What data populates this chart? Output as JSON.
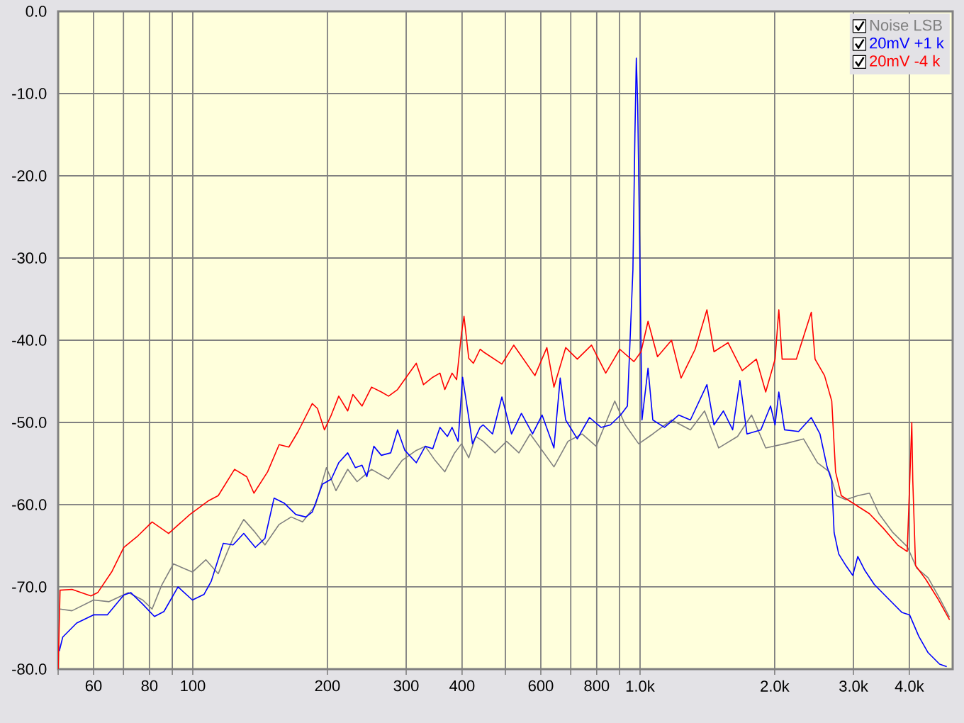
{
  "chart_data": {
    "type": "line",
    "log": "x",
    "grid": true,
    "legend": "top right",
    "xlim": [
      50,
      5000
    ],
    "ylim": [
      -80,
      0
    ],
    "xticks": [
      {
        "value": 50,
        "label": null
      },
      60,
      {
        "value": 70,
        "label": null
      },
      80,
      {
        "value": 90,
        "label": null
      },
      100,
      200,
      300,
      400,
      {
        "value": 500,
        "label": null
      },
      600,
      {
        "value": 700,
        "label": null
      },
      800,
      {
        "value": 900,
        "label": null
      },
      {
        "value": 1000,
        "label": "1.0k"
      },
      {
        "value": 2000,
        "label": "2.0k"
      },
      {
        "value": 3000,
        "label": "3.0k"
      },
      {
        "value": 4000,
        "label": "4.0k"
      }
    ],
    "yticks": [
      {
        "value": 0,
        "label": "0.0"
      },
      {
        "value": -10,
        "label": "-10.0"
      },
      {
        "value": -20,
        "label": "-20.0"
      },
      {
        "value": -30,
        "label": "-30.0"
      },
      {
        "value": -40,
        "label": "-40.0"
      },
      {
        "value": -50,
        "label": "-50.0"
      },
      {
        "value": -60,
        "label": "-60.0"
      },
      {
        "value": -70,
        "label": "-70.0"
      },
      {
        "value": -80,
        "label": "-80.0"
      }
    ],
    "series": [
      {
        "name": "Noise LSB",
        "color": "#808080",
        "x": [
          50.5,
          53.7,
          60,
          65,
          71.8,
          77.3,
          81.1,
          85.2,
          90.5,
          99.8,
          107,
          114,
          123,
          130,
          137,
          145,
          156,
          166,
          176,
          188,
          199,
          209,
          222,
          233,
          251,
          274,
          294,
          316,
          331,
          348,
          366,
          385,
          399,
          414,
          429,
          446,
          474,
          503,
          536,
          568,
          642,
          690,
          742,
          798,
          878,
          927,
          993,
          1068,
          1176,
          1296,
          1394,
          1499,
          1652,
          1776,
          1910,
          2104,
          2320,
          2493,
          2650,
          2750,
          2885,
          3068,
          3258,
          3421,
          3677,
          3957,
          4154,
          4406,
          4675,
          4921
        ],
        "values": [
          -72.7,
          -72.9,
          -71.6,
          -71.8,
          -70.7,
          -71.6,
          -72.7,
          -69.8,
          -67.2,
          -68.2,
          -66.7,
          -68.4,
          -64.1,
          -61.8,
          -63.2,
          -64.9,
          -62.4,
          -61.5,
          -62.1,
          -60.1,
          -55.5,
          -58.3,
          -55.7,
          -57.2,
          -55.7,
          -56.9,
          -54.6,
          -53.4,
          -52.9,
          -54.6,
          -56.0,
          -53.7,
          -52.6,
          -54.3,
          -51.7,
          -52.3,
          -53.7,
          -52.3,
          -53.7,
          -51.4,
          -55.4,
          -52.3,
          -51.4,
          -52.9,
          -47.4,
          -50.3,
          -52.6,
          -51.4,
          -49.7,
          -50.9,
          -48.6,
          -53.1,
          -51.7,
          -49.1,
          -53.1,
          -52.6,
          -52.0,
          -54.9,
          -56.0,
          -58.9,
          -59.4,
          -58.9,
          -58.6,
          -61.1,
          -63.4,
          -65.1,
          -67.7,
          -68.9,
          -71.4,
          -73.7
        ]
      },
      {
        "name": "20mV +1 k",
        "color": "#0000ff",
        "x": [
          50.3,
          51.2,
          55,
          60,
          64.4,
          70.1,
          72.7,
          77.3,
          82.1,
          86.2,
          92.7,
          99.8,
          106,
          110,
          117,
          123,
          130,
          138,
          145,
          152,
          160,
          170,
          179,
          185,
          195,
          204,
          212,
          222,
          231,
          239,
          245,
          254,
          264,
          277,
          287,
          298,
          316,
          331,
          344,
          357,
          371,
          380,
          392,
          401,
          414,
          422,
          439,
          446,
          468,
          491,
          516,
          543,
          575,
          604,
          642,
          663,
          682,
          724,
          771,
          818,
          858,
          905,
          937,
          964,
          974,
          981,
          988,
          997,
          1010,
          1042,
          1068,
          1134,
          1220,
          1296,
          1411,
          1463,
          1536,
          1611,
          1672,
          1734,
          1863,
          1958,
          2004,
          2043,
          2104,
          2262,
          2415,
          2525,
          2619,
          2683,
          2716,
          2781,
          2885,
          2990,
          3068,
          3182,
          3339,
          3585,
          3850,
          4005,
          4199,
          4406,
          4675,
          4850
        ],
        "values": [
          -77.8,
          -76.1,
          -74.4,
          -73.4,
          -73.4,
          -71.0,
          -70.7,
          -72.1,
          -73.6,
          -73.0,
          -70.0,
          -71.6,
          -70.9,
          -69.3,
          -64.7,
          -64.9,
          -63.5,
          -65.2,
          -64.1,
          -59.2,
          -59.8,
          -61.2,
          -61.5,
          -60.9,
          -57.5,
          -56.9,
          -54.9,
          -53.7,
          -55.5,
          -55.2,
          -56.6,
          -52.9,
          -54.0,
          -53.7,
          -50.9,
          -53.4,
          -54.9,
          -52.9,
          -53.2,
          -50.6,
          -51.7,
          -50.6,
          -52.3,
          -44.5,
          -49.4,
          -52.6,
          -50.6,
          -50.3,
          -51.4,
          -46.9,
          -51.4,
          -48.9,
          -51.4,
          -49.1,
          -53.1,
          -44.6,
          -49.7,
          -52.0,
          -49.4,
          -50.6,
          -50.3,
          -49.1,
          -48.0,
          -31.4,
          -14.9,
          -5.7,
          -11.4,
          -26.3,
          -49.7,
          -43.4,
          -49.7,
          -50.6,
          -49.1,
          -49.7,
          -45.4,
          -50.3,
          -48.6,
          -50.9,
          -44.9,
          -51.4,
          -50.9,
          -48.0,
          -50.3,
          -46.3,
          -50.9,
          -51.1,
          -49.4,
          -51.4,
          -55.4,
          -57.1,
          -63.4,
          -66.0,
          -67.4,
          -68.6,
          -66.3,
          -68.0,
          -69.7,
          -71.4,
          -73.1,
          -73.4,
          -76.0,
          -78.0,
          -79.4,
          -79.7
        ]
      },
      {
        "name": "20mV -4 k",
        "color": "#ff0000",
        "x": [
          50,
          50.5,
          53.7,
          59.2,
          61.3,
          66,
          70.1,
          75.4,
          81.1,
          88.3,
          98.5,
          108.6,
          114,
          124,
          132,
          137,
          147,
          156,
          164,
          172,
          185,
          190,
          197,
          204,
          212,
          222,
          228,
          239,
          251,
          264,
          274,
          287,
          301,
          316,
          328,
          344,
          357,
          366,
          380,
          389,
          399,
          404,
          414,
          424,
          439,
          446,
          491,
          522,
          582,
          619,
          642,
          682,
          724,
          779,
          838,
          901,
          969,
          1005,
          1042,
          1094,
          1176,
          1235,
          1328,
          1411,
          1463,
          1573,
          1692,
          1820,
          1910,
          2004,
          2043,
          2078,
          2236,
          2415,
          2462,
          2585,
          2683,
          2736,
          2818,
          3029,
          3258,
          3503,
          3767,
          3957,
          4005,
          4051,
          4072,
          4130,
          4355,
          4628,
          4921
        ],
        "values": [
          -80,
          -70.4,
          -70.3,
          -71.1,
          -70.7,
          -68.1,
          -65.2,
          -63.8,
          -62.1,
          -63.5,
          -61.2,
          -59.5,
          -58.9,
          -55.7,
          -56.6,
          -58.6,
          -56.0,
          -52.7,
          -53.0,
          -51.1,
          -47.7,
          -48.3,
          -50.9,
          -49.1,
          -46.8,
          -48.6,
          -46.6,
          -48.0,
          -45.7,
          -46.3,
          -46.8,
          -46.0,
          -44.4,
          -42.8,
          -45.4,
          -44.5,
          -44.0,
          -46.0,
          -44.0,
          -44.8,
          -39.1,
          -37.1,
          -42.2,
          -42.8,
          -41.1,
          -41.4,
          -42.9,
          -40.6,
          -44.3,
          -40.9,
          -45.7,
          -40.9,
          -42.3,
          -40.6,
          -44.0,
          -41.1,
          -42.6,
          -41.4,
          -37.7,
          -42.0,
          -40.0,
          -44.6,
          -41.1,
          -36.3,
          -41.4,
          -40.3,
          -43.7,
          -42.3,
          -46.3,
          -42.3,
          -36.3,
          -42.3,
          -42.3,
          -36.6,
          -42.3,
          -44.3,
          -47.4,
          -56.0,
          -58.9,
          -60.0,
          -61.1,
          -62.9,
          -64.9,
          -65.7,
          -57.7,
          -50.0,
          -57.1,
          -67.4,
          -69.1,
          -71.4,
          -74.0
        ]
      }
    ]
  }
}
